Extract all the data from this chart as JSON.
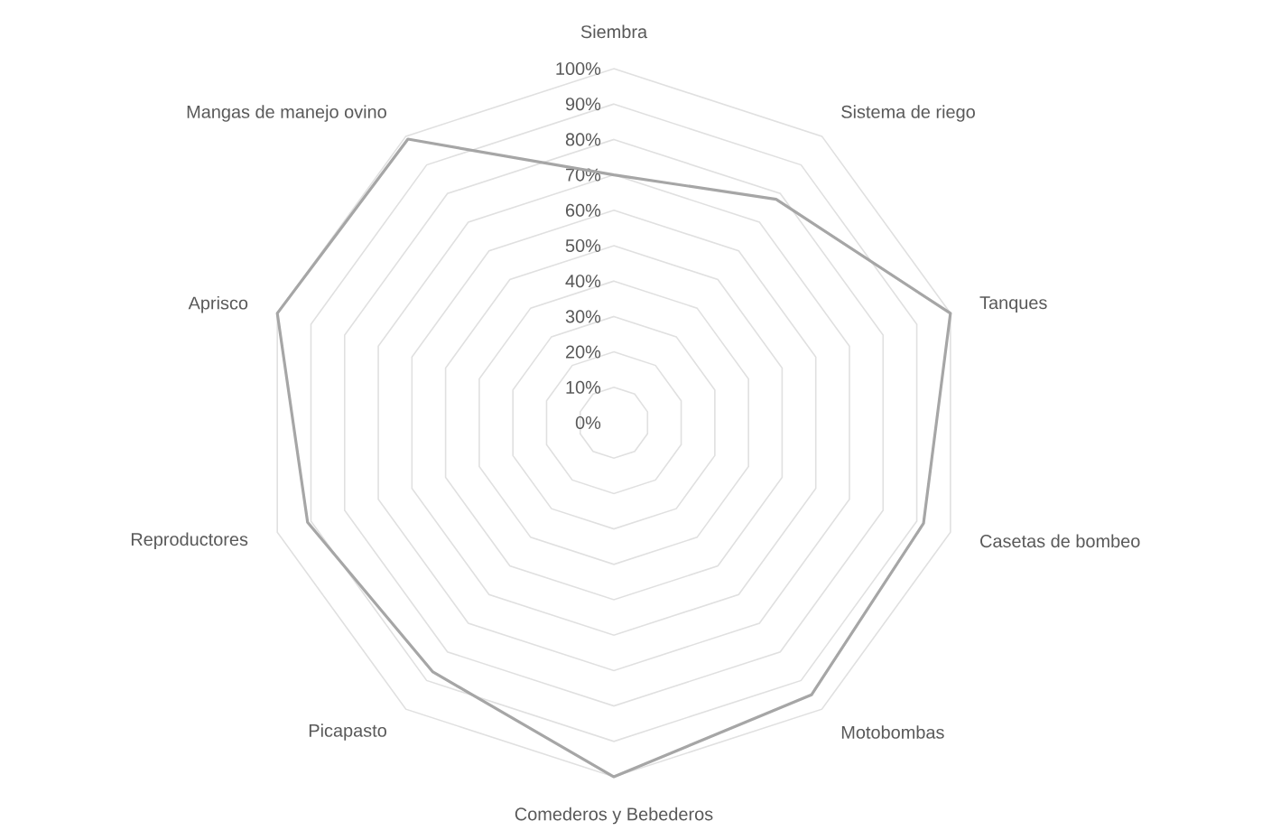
{
  "chart_data": {
    "type": "radar",
    "categories": [
      "Siembra",
      "Sistema de riego",
      "Tanques",
      "Casetas de bombeo",
      "Motobombas",
      "Comederos y Bebederos",
      "Picapasto",
      "Reproductores",
      "Aprisco",
      "Mangas de manejo ovino"
    ],
    "series": [
      {
        "color": "#a6a6a6",
        "values": [
          70,
          78,
          100,
          92,
          95,
          100,
          87,
          91,
          100,
          99
        ]
      }
    ],
    "ylim": [
      0,
      100
    ],
    "yticks": [
      {
        "value": 0,
        "label": "0%"
      },
      {
        "value": 10,
        "label": "10%"
      },
      {
        "value": 20,
        "label": "20%"
      },
      {
        "value": 30,
        "label": "30%"
      },
      {
        "value": 40,
        "label": "40%"
      },
      {
        "value": 50,
        "label": "50%"
      },
      {
        "value": 60,
        "label": "60%"
      },
      {
        "value": 70,
        "label": "70%"
      },
      {
        "value": 80,
        "label": "80%"
      },
      {
        "value": 90,
        "label": "90%"
      },
      {
        "value": 100,
        "label": "100%"
      }
    ],
    "grid": true,
    "marker": "none",
    "line_style": "solid"
  }
}
